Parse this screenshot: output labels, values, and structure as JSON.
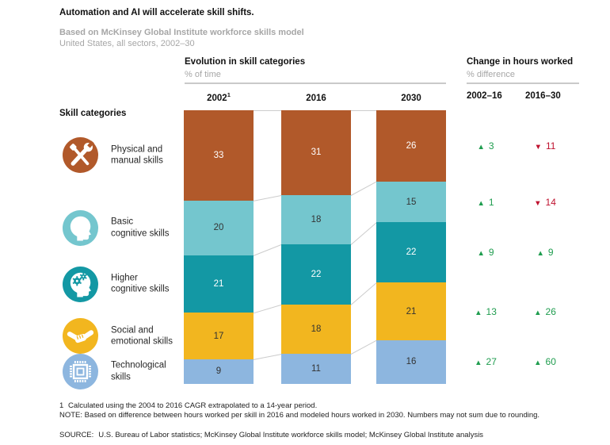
{
  "header": {
    "title": "Automation and AI will accelerate skill shifts.",
    "subtitle1": "Based on McKinsey Global Institute workforce skills model",
    "subtitle2": "United States, all sectors, 2002–30"
  },
  "sections": {
    "evolution": {
      "title": "Evolution in skill categories",
      "unit": "% of time"
    },
    "change": {
      "title": "Change in hours worked",
      "unit": "% difference"
    }
  },
  "skill_categories_label": "Skill categories",
  "chart_data": {
    "type": "bar",
    "subtype": "stacked-100-percent-columns-with-change-table",
    "title": "Evolution in skill categories",
    "value_unit": "% of time",
    "change_unit": "% difference",
    "years": [
      {
        "label": "2002",
        "footnote_sup": "1"
      },
      {
        "label": "2016",
        "footnote_sup": ""
      },
      {
        "label": "2030",
        "footnote_sup": ""
      }
    ],
    "change_periods": [
      "2002–16",
      "2016–30"
    ],
    "change_icons": {
      "up": "▲",
      "down": "▼"
    },
    "change_colors": {
      "up": "#1f9d4f",
      "down": "#bf122f"
    },
    "connector_color": "#cccccc",
    "series": [
      {
        "name": "Physical and\nmanual skills",
        "icon": "tools-icon",
        "color": "#b1592a",
        "value_text_color": "#ffffff",
        "values": [
          33,
          31,
          26
        ],
        "changes": [
          {
            "direction": "up",
            "value": 3
          },
          {
            "direction": "down",
            "value": 11
          }
        ]
      },
      {
        "name": "Basic\ncognitive skills",
        "icon": "head-icon",
        "color": "#74c6ce",
        "value_text_color": "#333333",
        "values": [
          20,
          18,
          15
        ],
        "changes": [
          {
            "direction": "up",
            "value": 1
          },
          {
            "direction": "down",
            "value": 14
          }
        ]
      },
      {
        "name": "Higher\ncognitive skills",
        "icon": "head-gears-icon",
        "color": "#1398a4",
        "value_text_color": "#ffffff",
        "values": [
          21,
          22,
          22
        ],
        "changes": [
          {
            "direction": "up",
            "value": 9
          },
          {
            "direction": "up",
            "value": 9
          }
        ]
      },
      {
        "name": "Social and\nemotional skills",
        "icon": "handshake-icon",
        "color": "#f2b61f",
        "value_text_color": "#333333",
        "values": [
          17,
          18,
          21
        ],
        "changes": [
          {
            "direction": "up",
            "value": 13
          },
          {
            "direction": "up",
            "value": 26
          }
        ]
      },
      {
        "name": "Technological\nskills",
        "icon": "chip-icon",
        "color": "#8db6df",
        "value_text_color": "#333333",
        "values": [
          9,
          11,
          16
        ],
        "changes": [
          {
            "direction": "up",
            "value": 27
          },
          {
            "direction": "up",
            "value": 60
          }
        ]
      }
    ]
  },
  "footnotes": {
    "footnote1_marker": "1",
    "footnote1_text": "Calculated using the 2004 to 2016 CAGR extrapolated to a 14-year period.",
    "note": "NOTE: Based on difference between hours worked per skill in 2016 and modeled hours worked in 2030. Numbers may not sum due to rounding.",
    "source_label": "SOURCE:",
    "source_text": "U.S. Bureau of Labor statistics; McKinsey Global Institute workforce skills model; McKinsey Global Institute analysis"
  }
}
